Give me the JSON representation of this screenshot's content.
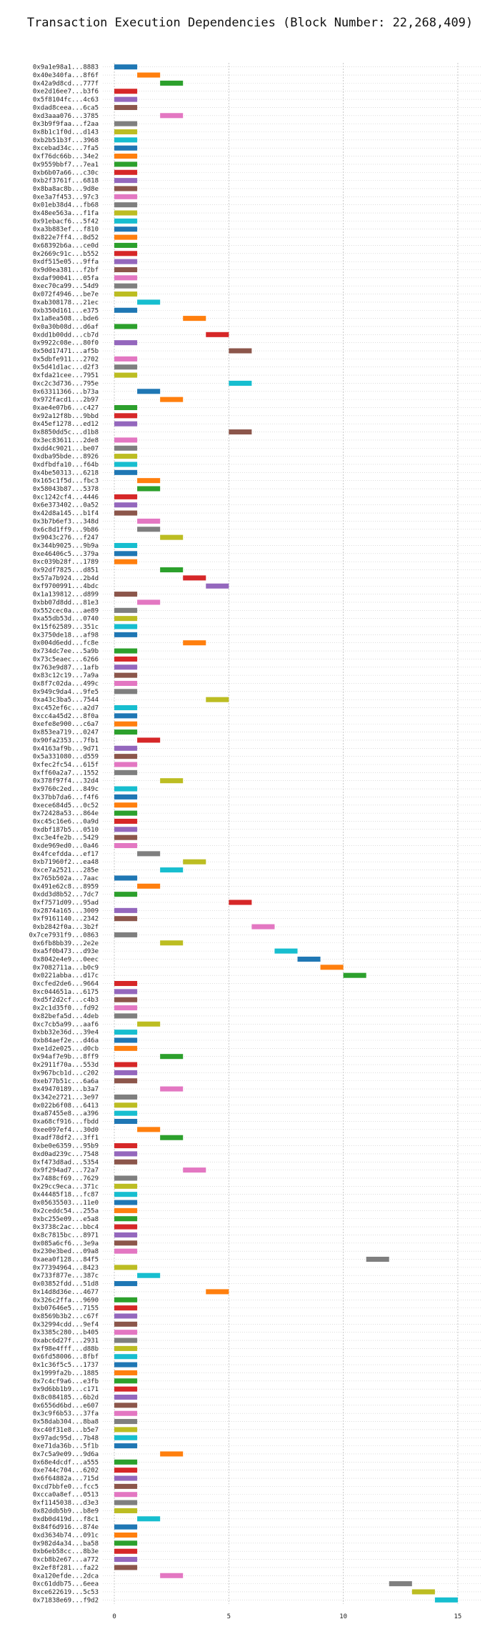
{
  "chart_data": {
    "type": "bar",
    "orientation": "horizontal",
    "title": "Transaction Execution Dependencies (Block Number: 22,268,409)",
    "xlabel": "",
    "ylabel": "",
    "xlim": [
      -0.5,
      16
    ],
    "xticks": [
      0,
      5,
      10,
      15
    ],
    "grid": true,
    "legend": "none",
    "palette": [
      "#1f77b4",
      "#ff7f0e",
      "#2ca02c",
      "#d62728",
      "#9467bd",
      "#8c564b",
      "#e377c2",
      "#7f7f7f",
      "#bcbd22",
      "#17becf"
    ],
    "transactions": [
      {
        "hash": "0x9a1e98a1...8883",
        "start": 0,
        "duration": 1
      },
      {
        "hash": "0x40e340fa...8f6f",
        "start": 1,
        "duration": 1
      },
      {
        "hash": "0x42a9d8cd...777f",
        "start": 2,
        "duration": 1
      },
      {
        "hash": "0xe2d16ee7...b3f6",
        "start": 0,
        "duration": 1
      },
      {
        "hash": "0x5f8104fc...4c63",
        "start": 0,
        "duration": 1
      },
      {
        "hash": "0xdad8ceea...6ca5",
        "start": 0,
        "duration": 1
      },
      {
        "hash": "0xd3aaa076...3785",
        "start": 2,
        "duration": 1
      },
      {
        "hash": "0x3b9f9faa...f2aa",
        "start": 0,
        "duration": 1
      },
      {
        "hash": "0x8b1c1f0d...d143",
        "start": 0,
        "duration": 1
      },
      {
        "hash": "0xb2b51b3f...3968",
        "start": 0,
        "duration": 1
      },
      {
        "hash": "0xcebad34c...7fa5",
        "start": 0,
        "duration": 1
      },
      {
        "hash": "0xf76dc66b...34e2",
        "start": 0,
        "duration": 1
      },
      {
        "hash": "0x9559bbf7...7ea1",
        "start": 0,
        "duration": 1
      },
      {
        "hash": "0xb6b07a66...c30c",
        "start": 0,
        "duration": 1
      },
      {
        "hash": "0xb2f3761f...6818",
        "start": 0,
        "duration": 1
      },
      {
        "hash": "0x8ba8ac8b...9d8e",
        "start": 0,
        "duration": 1
      },
      {
        "hash": "0xe3a7f453...97c3",
        "start": 0,
        "duration": 1
      },
      {
        "hash": "0x01eb38d4...fb68",
        "start": 0,
        "duration": 1
      },
      {
        "hash": "0x48ee563a...f1fa",
        "start": 0,
        "duration": 1
      },
      {
        "hash": "0x91ebacf6...5f42",
        "start": 0,
        "duration": 1
      },
      {
        "hash": "0xa3b883ef...f810",
        "start": 0,
        "duration": 1
      },
      {
        "hash": "0x822e7ff4...8d52",
        "start": 0,
        "duration": 1
      },
      {
        "hash": "0x68392b6a...ce0d",
        "start": 0,
        "duration": 1
      },
      {
        "hash": "0x2669c91c...b552",
        "start": 0,
        "duration": 1
      },
      {
        "hash": "0xdf515e05...9ffa",
        "start": 0,
        "duration": 1
      },
      {
        "hash": "0x9d0ea381...f2bf",
        "start": 0,
        "duration": 1
      },
      {
        "hash": "0xdaf90041...05fa",
        "start": 0,
        "duration": 1
      },
      {
        "hash": "0xec70ca99...54d9",
        "start": 0,
        "duration": 1
      },
      {
        "hash": "0x072f4946...be7e",
        "start": 0,
        "duration": 1
      },
      {
        "hash": "0xab308178...21ec",
        "start": 1,
        "duration": 1
      },
      {
        "hash": "0xb350d161...e375",
        "start": 0,
        "duration": 1
      },
      {
        "hash": "0x1a8ea508...bde6",
        "start": 3,
        "duration": 1
      },
      {
        "hash": "0x0a30b08d...d6af",
        "start": 0,
        "duration": 1
      },
      {
        "hash": "0xdd1b00dd...cb7d",
        "start": 4,
        "duration": 1
      },
      {
        "hash": "0x9922c08e...80f0",
        "start": 0,
        "duration": 1
      },
      {
        "hash": "0x50d17471...af5b",
        "start": 5,
        "duration": 1
      },
      {
        "hash": "0x5dbfe911...2702",
        "start": 0,
        "duration": 1
      },
      {
        "hash": "0x5d41d1ac...d2f3",
        "start": 0,
        "duration": 1
      },
      {
        "hash": "0xfda21cee...7951",
        "start": 0,
        "duration": 1
      },
      {
        "hash": "0xc2c3d736...795e",
        "start": 5,
        "duration": 1
      },
      {
        "hash": "0x63311366...b73a",
        "start": 1,
        "duration": 1
      },
      {
        "hash": "0x972facd1...2b97",
        "start": 2,
        "duration": 1
      },
      {
        "hash": "0xae4e07b6...c427",
        "start": 0,
        "duration": 1
      },
      {
        "hash": "0x92a12f8b...9bbd",
        "start": 0,
        "duration": 1
      },
      {
        "hash": "0x45ef1278...ed12",
        "start": 0,
        "duration": 1
      },
      {
        "hash": "0x8850dd5c...d1b8",
        "start": 5,
        "duration": 1
      },
      {
        "hash": "0x3ec83611...2de8",
        "start": 0,
        "duration": 1
      },
      {
        "hash": "0xdd4c9021...be07",
        "start": 0,
        "duration": 1
      },
      {
        "hash": "0xdba95bde...8926",
        "start": 0,
        "duration": 1
      },
      {
        "hash": "0xdfbdfa10...f64b",
        "start": 0,
        "duration": 1
      },
      {
        "hash": "0x4be50313...6218",
        "start": 0,
        "duration": 1
      },
      {
        "hash": "0x165c1f5d...fbc3",
        "start": 1,
        "duration": 1
      },
      {
        "hash": "0x58043b87...5378",
        "start": 1,
        "duration": 1
      },
      {
        "hash": "0xc1242cf4...4446",
        "start": 0,
        "duration": 1
      },
      {
        "hash": "0x6e373402...0a52",
        "start": 0,
        "duration": 1
      },
      {
        "hash": "0x42d8a145...b1f4",
        "start": 0,
        "duration": 1
      },
      {
        "hash": "0x3b7b6ef3...348d",
        "start": 1,
        "duration": 1
      },
      {
        "hash": "0x6c8d1ff9...9b86",
        "start": 1,
        "duration": 1
      },
      {
        "hash": "0x9043c276...f247",
        "start": 2,
        "duration": 1
      },
      {
        "hash": "0x344b9025...9b9a",
        "start": 0,
        "duration": 1
      },
      {
        "hash": "0xe46406c5...379a",
        "start": 0,
        "duration": 1
      },
      {
        "hash": "0xc039b28f...1789",
        "start": 0,
        "duration": 1
      },
      {
        "hash": "0x92df7825...d851",
        "start": 2,
        "duration": 1
      },
      {
        "hash": "0x57a7b924...2b4d",
        "start": 3,
        "duration": 1
      },
      {
        "hash": "0xf9700991...4bdc",
        "start": 4,
        "duration": 1
      },
      {
        "hash": "0x1a139812...d899",
        "start": 0,
        "duration": 1
      },
      {
        "hash": "0xbb07d8dd...81e3",
        "start": 1,
        "duration": 1
      },
      {
        "hash": "0x552cec0a...ae89",
        "start": 0,
        "duration": 1
      },
      {
        "hash": "0xa55db53d...0740",
        "start": 0,
        "duration": 1
      },
      {
        "hash": "0x15f62589...351c",
        "start": 0,
        "duration": 1
      },
      {
        "hash": "0x3750de18...af98",
        "start": 0,
        "duration": 1
      },
      {
        "hash": "0x004d6edd...fc8e",
        "start": 3,
        "duration": 1
      },
      {
        "hash": "0x734dc7ee...5a9b",
        "start": 0,
        "duration": 1
      },
      {
        "hash": "0x73c5eaec...6266",
        "start": 0,
        "duration": 1
      },
      {
        "hash": "0x763e9d87...1afb",
        "start": 0,
        "duration": 1
      },
      {
        "hash": "0x83c12c19...7a9a",
        "start": 0,
        "duration": 1
      },
      {
        "hash": "0x8f7c02da...499c",
        "start": 0,
        "duration": 1
      },
      {
        "hash": "0x949c9da4...9fe5",
        "start": 0,
        "duration": 1
      },
      {
        "hash": "0xa43c3ba5...7544",
        "start": 4,
        "duration": 1
      },
      {
        "hash": "0xc452ef6c...a2d7",
        "start": 0,
        "duration": 1
      },
      {
        "hash": "0xcc4a45d2...8f0a",
        "start": 0,
        "duration": 1
      },
      {
        "hash": "0xefe8e900...c6a7",
        "start": 0,
        "duration": 1
      },
      {
        "hash": "0x853ea719...0247",
        "start": 0,
        "duration": 1
      },
      {
        "hash": "0x90fa2353...7fb1",
        "start": 1,
        "duration": 1
      },
      {
        "hash": "0x4163af9b...9d71",
        "start": 0,
        "duration": 1
      },
      {
        "hash": "0x5a331080...d559",
        "start": 0,
        "duration": 1
      },
      {
        "hash": "0xfec2fc54...615f",
        "start": 0,
        "duration": 1
      },
      {
        "hash": "0xff60a2a7...1552",
        "start": 0,
        "duration": 1
      },
      {
        "hash": "0x378f97f4...32d4",
        "start": 2,
        "duration": 1
      },
      {
        "hash": "0x9760c2ed...849c",
        "start": 0,
        "duration": 1
      },
      {
        "hash": "0x37bb7da6...f4f6",
        "start": 0,
        "duration": 1
      },
      {
        "hash": "0xece684d5...0c52",
        "start": 0,
        "duration": 1
      },
      {
        "hash": "0x72428a53...864e",
        "start": 0,
        "duration": 1
      },
      {
        "hash": "0xc45c16e6...0a9d",
        "start": 0,
        "duration": 1
      },
      {
        "hash": "0xdbf187b5...0510",
        "start": 0,
        "duration": 1
      },
      {
        "hash": "0xc3e4fe2b...5429",
        "start": 0,
        "duration": 1
      },
      {
        "hash": "0xde969ed0...0a46",
        "start": 0,
        "duration": 1
      },
      {
        "hash": "0x4fcefdda...ef17",
        "start": 1,
        "duration": 1
      },
      {
        "hash": "0xb71960f2...ea48",
        "start": 3,
        "duration": 1
      },
      {
        "hash": "0xce7a2521...285e",
        "start": 2,
        "duration": 1
      },
      {
        "hash": "0x765b502a...7aac",
        "start": 0,
        "duration": 1
      },
      {
        "hash": "0x491e62c8...8959",
        "start": 1,
        "duration": 1
      },
      {
        "hash": "0xdd3d8b52...7dc7",
        "start": 0,
        "duration": 1
      },
      {
        "hash": "0xf7571d09...95ad",
        "start": 5,
        "duration": 1
      },
      {
        "hash": "0x2874a165...3009",
        "start": 0,
        "duration": 1
      },
      {
        "hash": "0xf9161140...2342",
        "start": 0,
        "duration": 1
      },
      {
        "hash": "0xb2842f0a...3b2f",
        "start": 6,
        "duration": 1
      },
      {
        "hash": "0x7ce7931f9...0863",
        "start": 0,
        "duration": 1
      },
      {
        "hash": "0x6fb8bb39...2e2e",
        "start": 2,
        "duration": 1
      },
      {
        "hash": "0xa5f0b473...d93e",
        "start": 7,
        "duration": 1
      },
      {
        "hash": "0x8042e4e9...0eec",
        "start": 8,
        "duration": 1
      },
      {
        "hash": "0x7082711a...b0c9",
        "start": 9,
        "duration": 1
      },
      {
        "hash": "0x0221abba...d17c",
        "start": 10,
        "duration": 1
      },
      {
        "hash": "0xcfed2de6...9664",
        "start": 0,
        "duration": 1
      },
      {
        "hash": "0xc044651a...6175",
        "start": 0,
        "duration": 1
      },
      {
        "hash": "0xd5f2d2cf...c4b3",
        "start": 0,
        "duration": 1
      },
      {
        "hash": "0x2c1d35f0...fd92",
        "start": 0,
        "duration": 1
      },
      {
        "hash": "0x82befa5d...4deb",
        "start": 0,
        "duration": 1
      },
      {
        "hash": "0xc7cb5a99...aaf6",
        "start": 1,
        "duration": 1
      },
      {
        "hash": "0xbb32e36d...39e4",
        "start": 0,
        "duration": 1
      },
      {
        "hash": "0xb84aef2e...d46a",
        "start": 0,
        "duration": 1
      },
      {
        "hash": "0xe1d2e025...d0cb",
        "start": 0,
        "duration": 1
      },
      {
        "hash": "0x94af7e9b...8ff9",
        "start": 2,
        "duration": 1
      },
      {
        "hash": "0x2911f70a...553d",
        "start": 0,
        "duration": 1
      },
      {
        "hash": "0x967bcb1d...c202",
        "start": 0,
        "duration": 1
      },
      {
        "hash": "0xeb77b51c...6a6a",
        "start": 0,
        "duration": 1
      },
      {
        "hash": "0x49470189...b3a7",
        "start": 2,
        "duration": 1
      },
      {
        "hash": "0x342e2721...3e97",
        "start": 0,
        "duration": 1
      },
      {
        "hash": "0x022b6f08...6413",
        "start": 0,
        "duration": 1
      },
      {
        "hash": "0xa87455e8...a396",
        "start": 0,
        "duration": 1
      },
      {
        "hash": "0xa68cf916...fbdd",
        "start": 0,
        "duration": 1
      },
      {
        "hash": "0xee097ef4...30d0",
        "start": 1,
        "duration": 1
      },
      {
        "hash": "0xadf78df2...3ff1",
        "start": 2,
        "duration": 1
      },
      {
        "hash": "0xbe0e6359...95b9",
        "start": 0,
        "duration": 1
      },
      {
        "hash": "0xd0ad239c...7548",
        "start": 0,
        "duration": 1
      },
      {
        "hash": "0xf473d8ad...5354",
        "start": 0,
        "duration": 1
      },
      {
        "hash": "0x9f294ad7...72a7",
        "start": 3,
        "duration": 1
      },
      {
        "hash": "0x7488cf69...7629",
        "start": 0,
        "duration": 1
      },
      {
        "hash": "0x29cc9eca...371c",
        "start": 0,
        "duration": 1
      },
      {
        "hash": "0x44485f18...fc87",
        "start": 0,
        "duration": 1
      },
      {
        "hash": "0x05635503...11e0",
        "start": 0,
        "duration": 1
      },
      {
        "hash": "0x2ceddc54...255a",
        "start": 0,
        "duration": 1
      },
      {
        "hash": "0xbc255e09...e5a8",
        "start": 0,
        "duration": 1
      },
      {
        "hash": "0x3738c2ac...bbc4",
        "start": 0,
        "duration": 1
      },
      {
        "hash": "0x8c7815bc...8971",
        "start": 0,
        "duration": 1
      },
      {
        "hash": "0x085a6cf6...3e9a",
        "start": 0,
        "duration": 1
      },
      {
        "hash": "0x230e3bed...09a8",
        "start": 0,
        "duration": 1
      },
      {
        "hash": "0xaea0f128...84f5",
        "start": 11,
        "duration": 1
      },
      {
        "hash": "0x77394964...8423",
        "start": 0,
        "duration": 1
      },
      {
        "hash": "0x733f877e...387c",
        "start": 1,
        "duration": 1
      },
      {
        "hash": "0x03852fdd...51d8",
        "start": 0,
        "duration": 1
      },
      {
        "hash": "0x14d8d36e...4677",
        "start": 4,
        "duration": 1
      },
      {
        "hash": "0x326c2ffa...9690",
        "start": 0,
        "duration": 1
      },
      {
        "hash": "0xb07646e5...7155",
        "start": 0,
        "duration": 1
      },
      {
        "hash": "0x8569b3b2...c67f",
        "start": 0,
        "duration": 1
      },
      {
        "hash": "0x32994cdd...9ef4",
        "start": 0,
        "duration": 1
      },
      {
        "hash": "0x3385c280...b405",
        "start": 0,
        "duration": 1
      },
      {
        "hash": "0xabc6d27f...2931",
        "start": 0,
        "duration": 1
      },
      {
        "hash": "0xf98e4fff...d88b",
        "start": 0,
        "duration": 1
      },
      {
        "hash": "0x6fd58006...8fbf",
        "start": 0,
        "duration": 1
      },
      {
        "hash": "0x1c36f5c5...1737",
        "start": 0,
        "duration": 1
      },
      {
        "hash": "0x1999fa2b...1885",
        "start": 0,
        "duration": 1
      },
      {
        "hash": "0x7c4cf9a6...e3fb",
        "start": 0,
        "duration": 1
      },
      {
        "hash": "0x9d6bb1b9...c171",
        "start": 0,
        "duration": 1
      },
      {
        "hash": "0x8c084185...6b2d",
        "start": 0,
        "duration": 1
      },
      {
        "hash": "0x6556d6bd...e607",
        "start": 0,
        "duration": 1
      },
      {
        "hash": "0x3c9f6b53...37fa",
        "start": 0,
        "duration": 1
      },
      {
        "hash": "0x58dab304...8ba8",
        "start": 0,
        "duration": 1
      },
      {
        "hash": "0xc40f31e8...b5e7",
        "start": 0,
        "duration": 1
      },
      {
        "hash": "0x97adc95d...7b48",
        "start": 0,
        "duration": 1
      },
      {
        "hash": "0xe71da36b...5f1b",
        "start": 0,
        "duration": 1
      },
      {
        "hash": "0x7c5a9e09...9d6a",
        "start": 2,
        "duration": 1
      },
      {
        "hash": "0x68e4dcdf...a555",
        "start": 0,
        "duration": 1
      },
      {
        "hash": "0xe744c704...6202",
        "start": 0,
        "duration": 1
      },
      {
        "hash": "0x6f64882a...715d",
        "start": 0,
        "duration": 1
      },
      {
        "hash": "0xcd7bbfe0...fcc5",
        "start": 0,
        "duration": 1
      },
      {
        "hash": "0xcca0a8ef...0513",
        "start": 0,
        "duration": 1
      },
      {
        "hash": "0xf1145038...d3e3",
        "start": 0,
        "duration": 1
      },
      {
        "hash": "0x82ddb5b9...b8e9",
        "start": 0,
        "duration": 1
      },
      {
        "hash": "0xdb0d419d...f8c1",
        "start": 1,
        "duration": 1
      },
      {
        "hash": "0x84f6d916...874e",
        "start": 0,
        "duration": 1
      },
      {
        "hash": "0xd3634b74...091c",
        "start": 0,
        "duration": 1
      },
      {
        "hash": "0x982d4a34...ba58",
        "start": 0,
        "duration": 1
      },
      {
        "hash": "0xb6eb58cc...8b3e",
        "start": 0,
        "duration": 1
      },
      {
        "hash": "0xcb8b2e67...a772",
        "start": 0,
        "duration": 1
      },
      {
        "hash": "0x2ef8f281...fa22",
        "start": 0,
        "duration": 1
      },
      {
        "hash": "0xa120efde...2dca",
        "start": 2,
        "duration": 1
      },
      {
        "hash": "0xc61ddb75...6eea",
        "start": 12,
        "duration": 1
      },
      {
        "hash": "0xce622619...5c53",
        "start": 13,
        "duration": 1
      },
      {
        "hash": "0x71838e69...f9d2",
        "start": 14,
        "duration": 1
      }
    ]
  }
}
